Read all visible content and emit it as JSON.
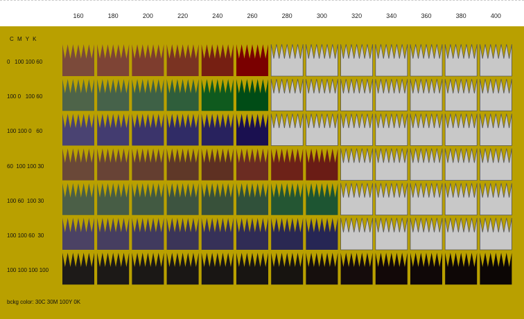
{
  "columns": [
    "160",
    "180",
    "200",
    "220",
    "240",
    "260",
    "280",
    "300",
    "320",
    "340",
    "360",
    "380",
    "400"
  ],
  "cmyk_header": "C  M  Y   K",
  "rows": [
    {
      "label": "0   100 100 60",
      "colors": [
        "#7b4a3a",
        "#7e4435",
        "#7e3d2e",
        "#7a3322",
        "#761f12",
        "#7a0000"
      ],
      "filled": 6
    },
    {
      "label": "100 0   100 60",
      "colors": [
        "#4e6449",
        "#46624a",
        "#3e6146",
        "#2f5e3b",
        "#0f5a1e",
        "#004c16"
      ],
      "filled": 6
    },
    {
      "label": "100 100 0   60",
      "colors": [
        "#4a4372",
        "#433c70",
        "#3b346b",
        "#302c66",
        "#28225e",
        "#1a1050"
      ],
      "filled": 6
    },
    {
      "label": "60  100 100 30",
      "colors": [
        "#6a4838",
        "#684336",
        "#643e30",
        "#5f3828",
        "#5e3022",
        "#6b2c22",
        "#6d2218",
        "#6a1c15"
      ],
      "filled": 8
    },
    {
      "label": "100 60  100 30",
      "colors": [
        "#4b5f47",
        "#475d45",
        "#425a42",
        "#3d5440",
        "#38513a",
        "#30513a",
        "#245633",
        "#1d5532"
      ],
      "filled": 8
    },
    {
      "label": "100 100 60  30",
      "colors": [
        "#4b4264",
        "#463e60",
        "#403a5e",
        "#3b3558",
        "#363158",
        "#302c55",
        "#2a2852",
        "#262654"
      ],
      "filled": 8
    },
    {
      "label": "100 100 100 100",
      "colors": [
        "#1d1a18",
        "#1c1917",
        "#1b1816",
        "#1a1715",
        "#191614",
        "#181512",
        "#171410",
        "#160f0d",
        "#150c0c",
        "#120808",
        "#100808",
        "#0e0706",
        "#0c0605"
      ],
      "filled": 13
    }
  ],
  "empty_fill": "#c8c8c8",
  "empty_stroke": "#555555",
  "bg_color": "#b9a000",
  "footer": "bckg color: 30C 30M 100Y 0K"
}
